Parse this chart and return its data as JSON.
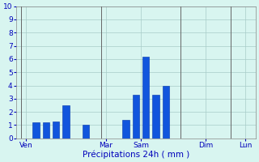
{
  "bar_positions": [
    2,
    3,
    4,
    5,
    7,
    11,
    12,
    13,
    14,
    15
  ],
  "bar_heights": [
    1.2,
    1.2,
    1.3,
    2.5,
    1.0,
    1.4,
    3.3,
    6.2,
    3.3,
    4.0
  ],
  "bar_color": "#1155dd",
  "bar_edge_color": "#0033aa",
  "background_color": "#d8f5f0",
  "grid_color": "#a8ccc8",
  "xlabel": "Précipitations 24h ( mm )",
  "xlabel_color": "#0000bb",
  "tick_label_color": "#0000bb",
  "ylim": [
    0,
    10
  ],
  "yticks": [
    0,
    1,
    2,
    3,
    4,
    5,
    6,
    7,
    8,
    9,
    10
  ],
  "xlim": [
    0,
    24
  ],
  "day_labels": [
    "Ven",
    "Mar",
    "Sam",
    "Dim",
    "Lun"
  ],
  "day_tick_positions": [
    1,
    9,
    12.5,
    19,
    23
  ],
  "vline_positions": [
    0.5,
    8.5,
    16.5,
    21.5
  ],
  "spine_color": "#888888"
}
